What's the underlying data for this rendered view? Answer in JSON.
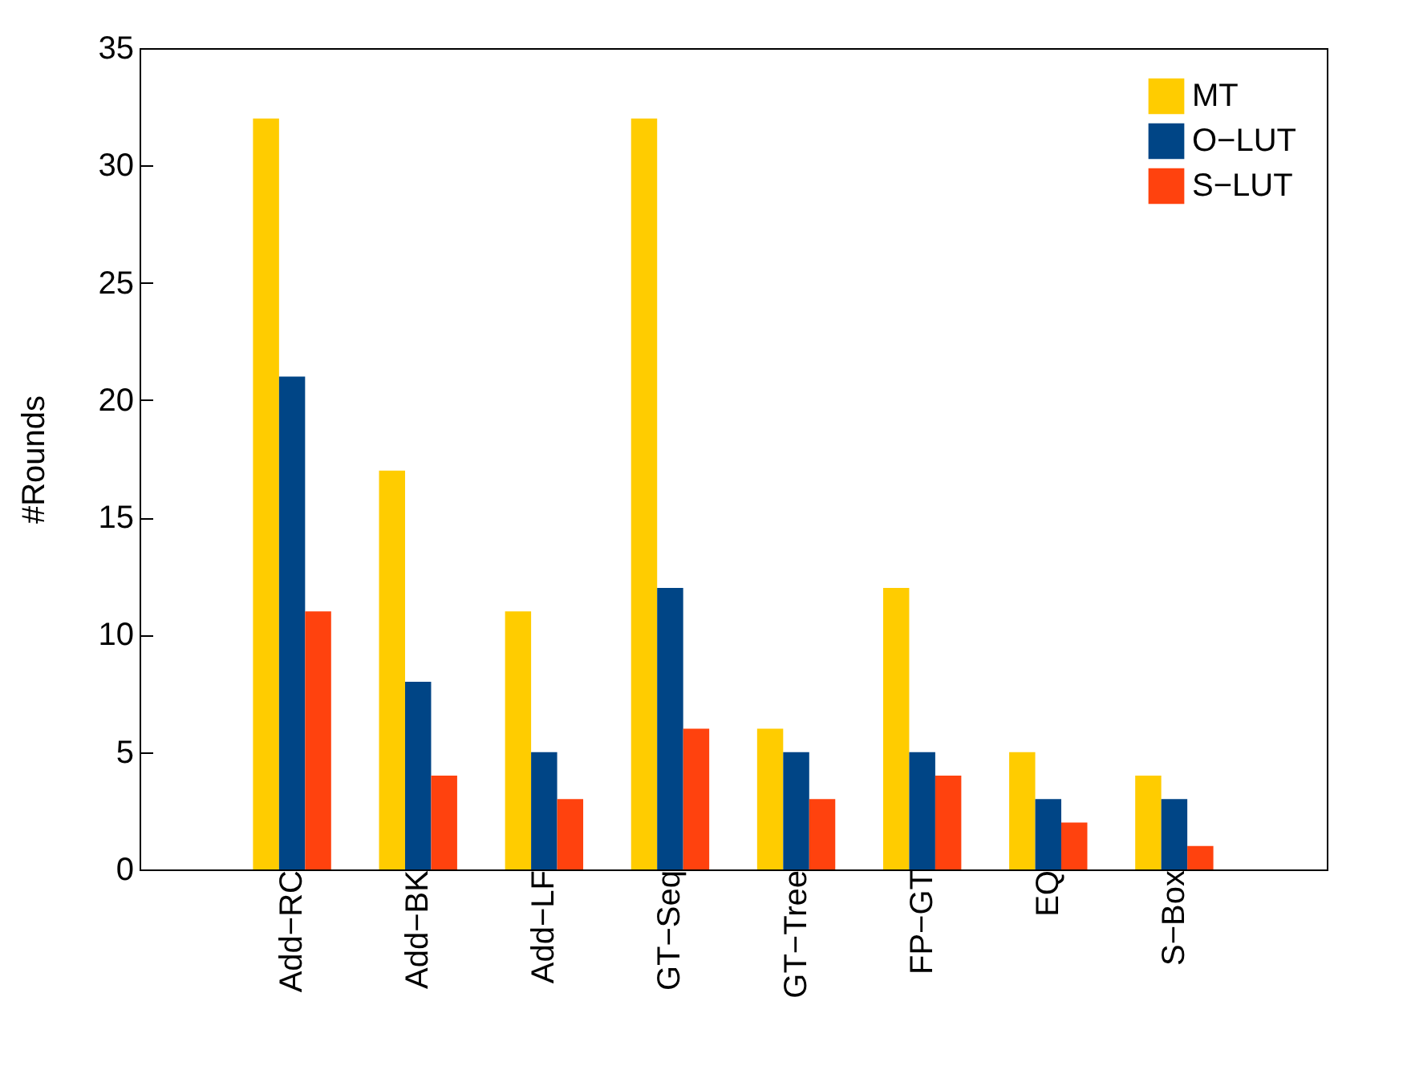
{
  "chart_data": {
    "type": "bar",
    "ylabel": "#Rounds",
    "categories": [
      "Add−RC",
      "Add−BK",
      "Add−LF",
      "GT−Seq",
      "GT−Tree",
      "FP−GT",
      "EQ",
      "S−Box"
    ],
    "series": [
      {
        "name": "MT",
        "color": "#ffcc00",
        "values": [
          32,
          17,
          11,
          32,
          6,
          12,
          5,
          4
        ]
      },
      {
        "name": "O−LUT",
        "color": "#004586",
        "values": [
          21,
          8,
          5,
          12,
          5,
          5,
          3,
          3
        ]
      },
      {
        "name": "S−LUT",
        "color": "#ff420e",
        "values": [
          11,
          4,
          3,
          6,
          3,
          4,
          2,
          1
        ]
      }
    ],
    "ylim": [
      0,
      35
    ],
    "yticks": [
      0,
      5,
      10,
      15,
      20,
      25,
      30,
      35
    ],
    "legend": "top right"
  }
}
